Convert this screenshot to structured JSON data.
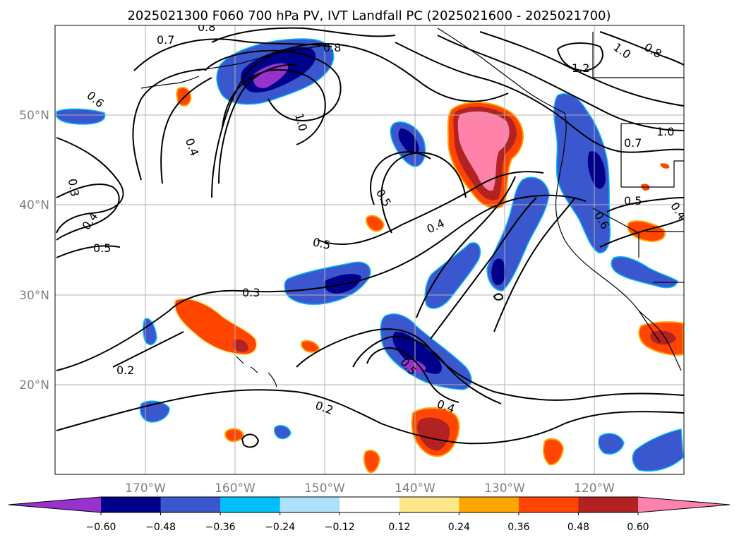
{
  "title": "2025021300 F060 700 hPa PV, IVT Landfall PC (2025021600 - 2025021700)",
  "lat_labels": [
    "50°N",
    "40°N",
    "30°N",
    "20°N"
  ],
  "lon_labels": [
    "170°W",
    "160°W",
    "150°W",
    "140°W",
    "130°W",
    "120°W"
  ],
  "colorbar": {
    "tick_labels": [
      "−0.60",
      "−0.48",
      "−0.36",
      "−0.24",
      "−0.12",
      "0.12",
      "0.24",
      "0.36",
      "0.48",
      "0.60"
    ],
    "colors": [
      "#9932CC",
      "#00008B",
      "#3A57CD",
      "#00BFFF",
      "#ADE1FA",
      "#FFFFFF",
      "#FFE88A",
      "#FFA500",
      "#FF4500",
      "#B22222",
      "#FF82AB"
    ]
  },
  "contour_labels": [
    "0.8",
    "0.7",
    "0.8",
    "1.0",
    "0.8",
    "1.2",
    "1.0",
    "0.6",
    "0.4",
    "0.3",
    "0.4",
    "0.5",
    "0.5",
    "0.3",
    "0.2",
    "0.2",
    "0.4",
    "0.5",
    "0.4",
    "1.0",
    "0.7",
    "0.5",
    "0.4",
    "0.6",
    "0.5"
  ],
  "map": {
    "lat_range": [
      10,
      60
    ],
    "lon_range": [
      -180,
      -110
    ],
    "gridlines": true,
    "fill_field": "IVT Landfall PC",
    "contour_field": "700 hPa PV"
  }
}
